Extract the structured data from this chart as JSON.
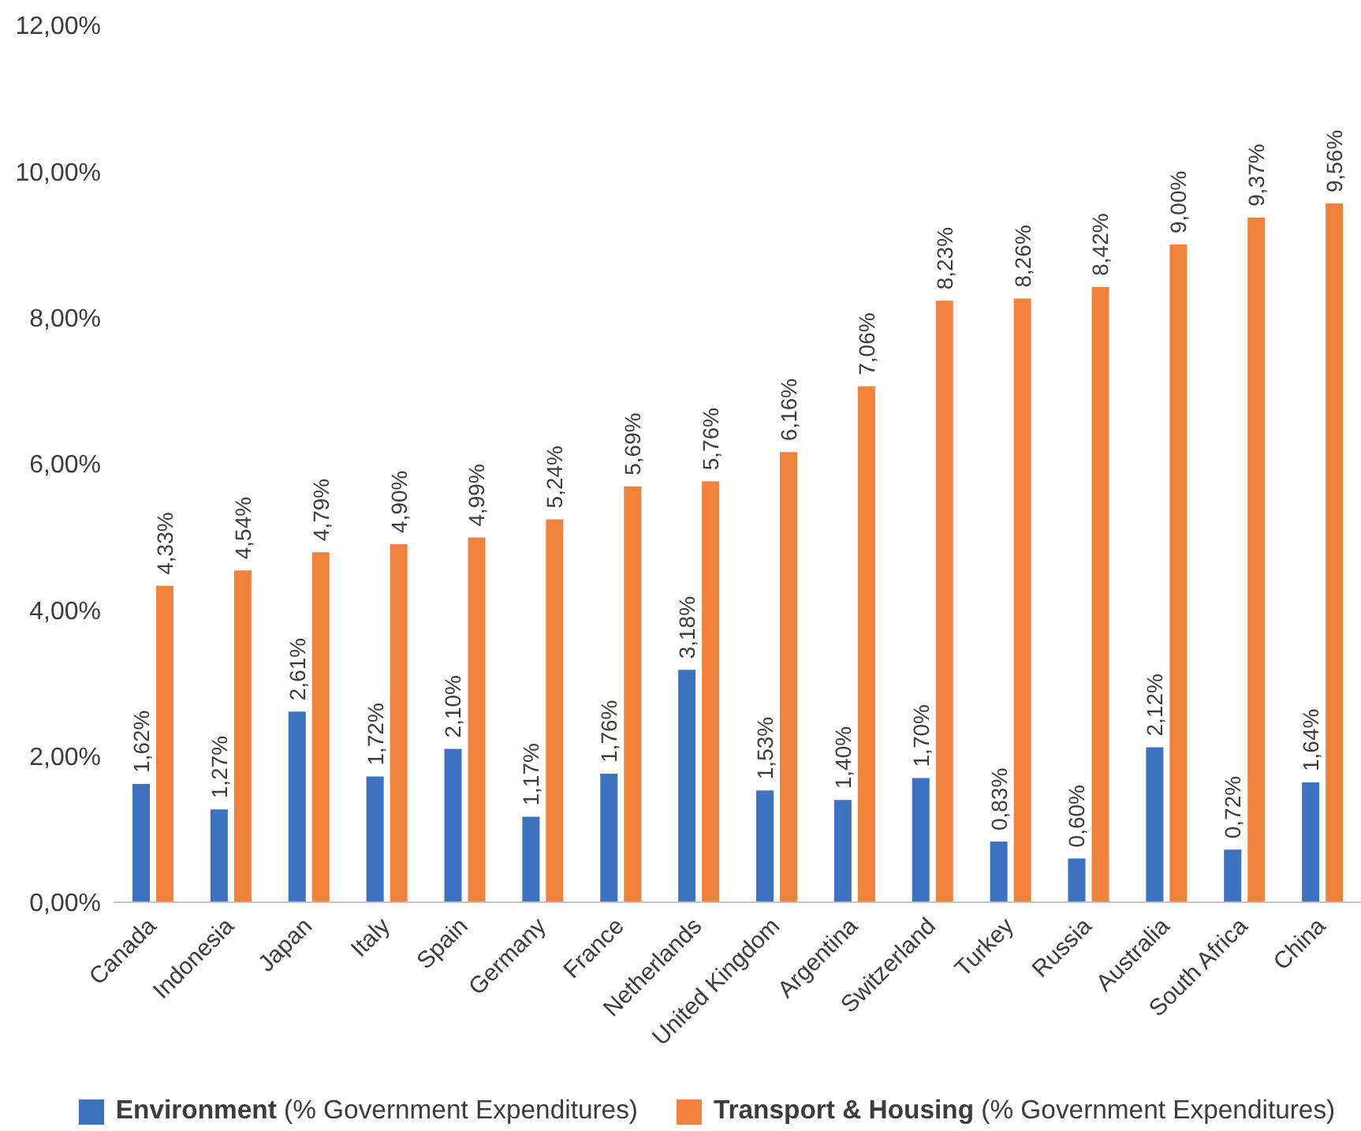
{
  "chart_data": {
    "type": "bar",
    "categories": [
      "Canada",
      "Indonesia",
      "Japan",
      "Italy",
      "Spain",
      "Germany",
      "France",
      "Netherlands",
      "United Kingdom",
      "Argentina",
      "Switzerland",
      "Turkey",
      "Russia",
      "Australia",
      "South Africa",
      "China"
    ],
    "series": [
      {
        "name": "Environment (% Government Expenditures)",
        "color": "#3d72c0",
        "values": [
          1.62,
          1.27,
          2.61,
          1.72,
          2.1,
          1.17,
          1.76,
          3.18,
          1.53,
          1.4,
          1.7,
          0.83,
          0.6,
          2.12,
          0.72,
          1.64
        ],
        "value_labels": [
          "1,62%",
          "1,27%",
          "2,61%",
          "1,72%",
          "2,10%",
          "1,17%",
          "1,76%",
          "3,18%",
          "1,53%",
          "1,40%",
          "1,70%",
          "0,83%",
          "0,60%",
          "2,12%",
          "0,72%",
          "1,64%"
        ]
      },
      {
        "name": "Transport & Housing (% Government Expenditures)",
        "color": "#f0823c",
        "values": [
          4.33,
          4.54,
          4.79,
          4.9,
          4.99,
          5.24,
          5.69,
          5.76,
          6.16,
          7.06,
          8.23,
          8.26,
          8.42,
          9.0,
          9.37,
          9.56
        ],
        "value_labels": [
          "4,33%",
          "4,54%",
          "4,79%",
          "4,90%",
          "4,99%",
          "5,24%",
          "5,69%",
          "5,76%",
          "6,16%",
          "7,06%",
          "8,23%",
          "8,26%",
          "8,42%",
          "9,00%",
          "9,37%",
          "9,56%"
        ]
      }
    ],
    "ylim": [
      0,
      12
    ],
    "yticks": [
      {
        "value": 0,
        "label": "0,00%"
      },
      {
        "value": 2,
        "label": "2,00%"
      },
      {
        "value": 4,
        "label": "4,00%"
      },
      {
        "value": 6,
        "label": "6,00%"
      },
      {
        "value": 8,
        "label": "8,00%"
      },
      {
        "value": 10,
        "label": "10,00%"
      },
      {
        "value": 12,
        "label": "12,00%"
      }
    ],
    "legend": "bottom"
  }
}
